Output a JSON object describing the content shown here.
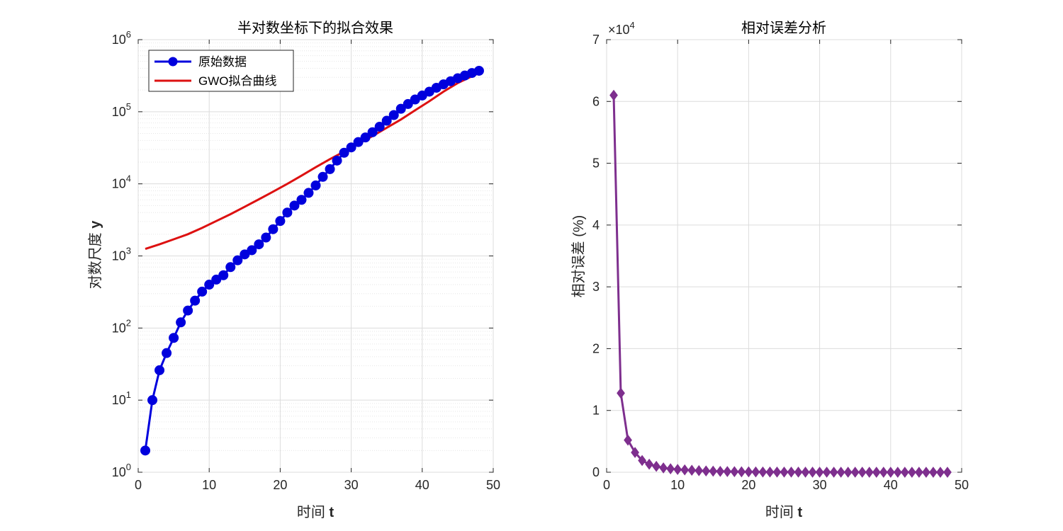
{
  "chart_data": [
    {
      "type": "line",
      "title": "半对数坐标下的拟合效果",
      "xlabel": "时间",
      "xlabel_var": "t",
      "ylabel": "对数尺度",
      "ylabel_var": "y",
      "xlim": [
        0,
        50
      ],
      "ylim": [
        1,
        1000000
      ],
      "yscale": "log",
      "xticks": [
        "0",
        "10",
        "20",
        "30",
        "40",
        "50"
      ],
      "yticks": [
        "10^0",
        "10^1",
        "10^2",
        "10^3",
        "10^4",
        "10^5",
        "10^6"
      ],
      "grid": true,
      "legend_position": "top-left",
      "series": [
        {
          "name": "原始数据",
          "color": "#0000dd",
          "marker": "circle",
          "x": [
            1,
            2,
            3,
            4,
            5,
            6,
            7,
            8,
            9,
            10,
            11,
            12,
            13,
            14,
            15,
            16,
            17,
            18,
            19,
            20,
            21,
            22,
            23,
            24,
            25,
            26,
            27,
            28,
            29,
            30,
            31,
            32,
            33,
            34,
            35,
            36,
            37,
            38,
            39,
            40,
            41,
            42,
            43,
            44,
            45,
            46,
            47,
            48
          ],
          "y": [
            2,
            10,
            26,
            45,
            73,
            120,
            175,
            240,
            320,
            400,
            470,
            540,
            700,
            870,
            1050,
            1200,
            1450,
            1800,
            2350,
            3050,
            4000,
            5000,
            6000,
            7500,
            9500,
            12500,
            16000,
            21000,
            27000,
            32000,
            38000,
            44000,
            52000,
            62000,
            75000,
            90000,
            110000,
            128000,
            148000,
            168000,
            190000,
            215000,
            240000,
            265000,
            292000,
            318000,
            345000,
            370000
          ]
        },
        {
          "name": "GWO拟合曲线",
          "color": "#dd1111",
          "marker": "none",
          "x": [
            1,
            3,
            5,
            7,
            9,
            11,
            13,
            15,
            17,
            19,
            21,
            23,
            25,
            27,
            29,
            31,
            33,
            35,
            37,
            39,
            41,
            43,
            45,
            47,
            48
          ],
          "y": [
            1250,
            1450,
            1700,
            2000,
            2450,
            3050,
            3800,
            4800,
            6100,
            7800,
            10000,
            13000,
            17000,
            22000,
            28000,
            36000,
            46000,
            60000,
            78000,
            105000,
            140000,
            190000,
            250000,
            310000,
            345000
          ]
        }
      ]
    },
    {
      "type": "line",
      "title": "相对误差分析",
      "xlabel": "时间",
      "xlabel_var": "t",
      "ylabel": "相对误差 (%)",
      "xlim": [
        0,
        50
      ],
      "ylim": [
        0,
        70000
      ],
      "y_multiplier": "×10^4",
      "xticks": [
        "0",
        "10",
        "20",
        "30",
        "40",
        "50"
      ],
      "yticks": [
        "0",
        "1",
        "2",
        "3",
        "4",
        "5",
        "6",
        "7"
      ],
      "grid": true,
      "series": [
        {
          "color": "#7e2f8e",
          "marker": "diamond",
          "x": [
            1,
            2,
            3,
            4,
            5,
            6,
            7,
            8,
            9,
            10,
            11,
            12,
            13,
            14,
            15,
            16,
            17,
            18,
            19,
            20,
            21,
            22,
            23,
            24,
            25,
            26,
            27,
            28,
            29,
            30,
            31,
            32,
            33,
            34,
            35,
            36,
            37,
            38,
            39,
            40,
            41,
            42,
            43,
            44,
            45,
            46,
            47,
            48
          ],
          "y": [
            61000,
            12800,
            5200,
            3200,
            1900,
            1300,
            950,
            700,
            560,
            450,
            380,
            320,
            260,
            210,
            170,
            140,
            110,
            90,
            70,
            60,
            50,
            40,
            35,
            30,
            25,
            22,
            18,
            15,
            12,
            10,
            8,
            6,
            5,
            4,
            3,
            3,
            2,
            2,
            2,
            1,
            1,
            1,
            1,
            1,
            1,
            1,
            1,
            1
          ]
        }
      ]
    }
  ]
}
